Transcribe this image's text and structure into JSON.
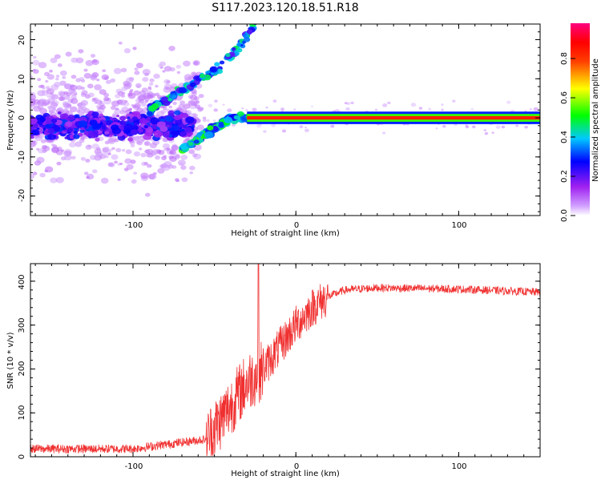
{
  "title": "S117.2023.120.18.51.R18",
  "chart_data": [
    {
      "type": "heatmap",
      "name": "spectrogram",
      "xlabel": "Height of straight line (km)",
      "ylabel": "Frequency (Hz)",
      "xlim": [
        -163,
        150
      ],
      "ylim": [
        -25,
        24
      ],
      "xticks": [
        -100,
        0,
        100
      ],
      "xtick_labels": [
        "-100",
        "0",
        "100"
      ],
      "yticks": [
        -20,
        -10,
        0,
        10,
        20
      ],
      "ytick_labels": [
        "-20",
        "-10",
        "0",
        "10",
        "20"
      ],
      "features": {
        "carrier_line": {
          "x_range": [
            -30,
            150
          ],
          "frequency": 0,
          "amplitude": 0.85
        },
        "scatter_band": {
          "x_range": [
            -163,
            -60
          ],
          "frequency_spread": 25
        },
        "upper_branch": {
          "points": [
            [
              -90,
              2
            ],
            [
              -70,
              7
            ],
            [
              -50,
              12
            ],
            [
              -35,
              18
            ],
            [
              -25,
              24
            ]
          ]
        },
        "rising_branch": {
          "points": [
            [
              -70,
              -8
            ],
            [
              -55,
              -4
            ],
            [
              -40,
              0
            ],
            [
              -20,
              0
            ]
          ]
        }
      },
      "colorbar": {
        "label": "Normalized spectral amplitude",
        "range": [
          0,
          1
        ],
        "ticks": [
          0,
          0.2,
          0.4,
          0.6,
          0.8
        ],
        "tick_labels": [
          "0.0",
          "0.2",
          "0.4",
          "0.6",
          "0.8"
        ],
        "colors": [
          "#ffffff",
          "#a020f0",
          "#0000ff",
          "#00ffff",
          "#00ff00",
          "#ffff00",
          "#ff0000",
          "#ff0080"
        ]
      }
    },
    {
      "type": "line",
      "name": "snr",
      "xlabel": "Height of straight line (km)",
      "ylabel": "SNR (10 * v/v)",
      "xlim": [
        -163,
        150
      ],
      "ylim": [
        0,
        440
      ],
      "xticks": [
        -100,
        0,
        100
      ],
      "xtick_labels": [
        "-100",
        "0",
        "100"
      ],
      "yticks": [
        0,
        100,
        200,
        300,
        400
      ],
      "ytick_labels": [
        "0",
        "100",
        "200",
        "300",
        "400"
      ],
      "color": "#f03030",
      "trend": {
        "x": [
          -163,
          -100,
          -80,
          -55,
          -45,
          -30,
          -20,
          -10,
          0,
          10,
          20,
          30,
          50,
          100,
          150
        ],
        "y": [
          18,
          18,
          28,
          40,
          90,
          170,
          200,
          250,
          300,
          340,
          365,
          380,
          385,
          382,
          375
        ]
      },
      "spike": {
        "x": -23,
        "y": 440
      }
    }
  ]
}
